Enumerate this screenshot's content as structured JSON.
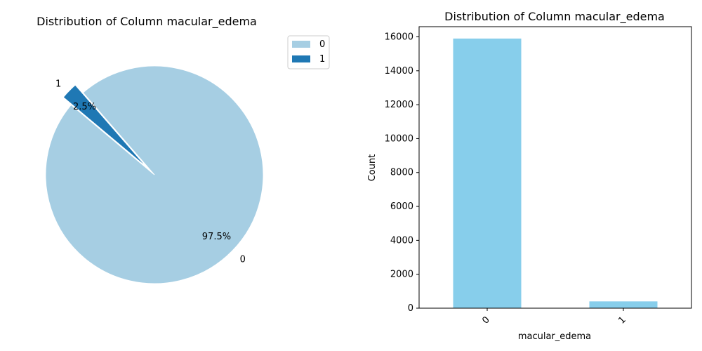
{
  "chart_data": [
    {
      "type": "pie",
      "title": "Distribution of Column macular_edema",
      "labels": [
        "0",
        "1"
      ],
      "values": [
        97.5,
        2.5
      ],
      "value_unit": "%",
      "pct_labels": [
        "97.5%",
        "2.5%"
      ],
      "colors": [
        "#a6cee3",
        "#1f78b4"
      ],
      "exploded": [
        "1"
      ],
      "legend": {
        "placement": "upper-right-outside",
        "entries": [
          "0",
          "1"
        ]
      }
    },
    {
      "type": "bar",
      "title": "Distribution of Column macular_edema",
      "categories": [
        "0",
        "1"
      ],
      "values": [
        15900,
        400
      ],
      "color": "#87ceeb",
      "xlabel": "macular_edema",
      "ylabel": "Count",
      "ylim": [
        0,
        16600
      ],
      "yticks": [
        0,
        2000,
        4000,
        6000,
        8000,
        10000,
        12000,
        14000,
        16000
      ],
      "grid": false
    }
  ]
}
